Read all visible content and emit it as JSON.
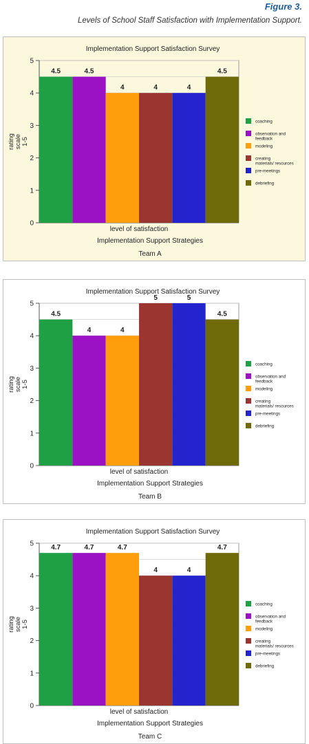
{
  "figure": {
    "label": "Figure 3.",
    "caption": "Levels of School Staff Satisfaction with Implementation Support."
  },
  "colors": {
    "coaching": "#1fa045",
    "observation": "#9a12c4",
    "modeling": "#ff9e0d",
    "creating": "#9b3530",
    "premeetings": "#2424cf",
    "debriefing": "#6e6a08"
  },
  "chart_data": [
    {
      "type": "bar",
      "title": "Implementation Support Satisfaction Survey",
      "xlabel": "level of satisfaction",
      "xlabel2": "Implementation Support Strategies",
      "ylabel": "rating scale 1-5",
      "team": "Team A",
      "ylim": [
        0,
        5
      ],
      "yticks": [
        "0",
        "1",
        "2",
        "3",
        "4",
        "5"
      ],
      "grid": true,
      "legend_position": "right",
      "background": "#fbf8de",
      "series": [
        {
          "name": "coaching",
          "value": 4.5,
          "label": "4.5"
        },
        {
          "name": "observation and feedback",
          "value": 4.5,
          "label": "4.5"
        },
        {
          "name": "modeling",
          "value": 4,
          "label": "4"
        },
        {
          "name": "creating materials/ resources",
          "value": 4,
          "label": "4"
        },
        {
          "name": "pre-meetings",
          "value": 4,
          "label": "4"
        },
        {
          "name": "debriefing",
          "value": 4.5,
          "label": "4.5"
        }
      ]
    },
    {
      "type": "bar",
      "title": "Implementation Support Satisfaction Survey",
      "xlabel": "level of satisfaction",
      "xlabel2": "Implementation Support Strategies",
      "ylabel": "rating scale 1-5",
      "team": "Team B",
      "ylim": [
        0,
        5
      ],
      "yticks": [
        "0",
        "1",
        "2",
        "3",
        "4",
        "5"
      ],
      "grid": true,
      "legend_position": "right",
      "background": "#ffffff",
      "series": [
        {
          "name": "coaching",
          "value": 4.5,
          "label": "4.5"
        },
        {
          "name": "observation and feedback",
          "value": 4,
          "label": "4"
        },
        {
          "name": "modeling",
          "value": 4,
          "label": "4"
        },
        {
          "name": "creating materials/ resources",
          "value": 5,
          "label": "5"
        },
        {
          "name": "pre-meetings",
          "value": 5,
          "label": "5"
        },
        {
          "name": "debriefing",
          "value": 4.5,
          "label": "4.5"
        }
      ]
    },
    {
      "type": "bar",
      "title": "Implementation Support Satisfaction Survey",
      "xlabel": "level of satisfaction",
      "xlabel2": "Implementation Support Strategies",
      "ylabel": "rating scale 1-5",
      "team": "Team C",
      "ylim": [
        0,
        5
      ],
      "yticks": [
        "0",
        "1",
        "2",
        "3",
        "4",
        "5"
      ],
      "grid": true,
      "legend_position": "right",
      "background": "#ffffff",
      "series": [
        {
          "name": "coaching",
          "value": 4.7,
          "label": "4.7"
        },
        {
          "name": "observation and feedback",
          "value": 4.7,
          "label": "4.7"
        },
        {
          "name": "modeling",
          "value": 4.7,
          "label": "4.7"
        },
        {
          "name": "creating materials/ resources",
          "value": 4,
          "label": "4"
        },
        {
          "name": "pre-meetings",
          "value": 4,
          "label": "4"
        },
        {
          "name": "debriefing",
          "value": 4.7,
          "label": "4.7"
        }
      ]
    }
  ]
}
